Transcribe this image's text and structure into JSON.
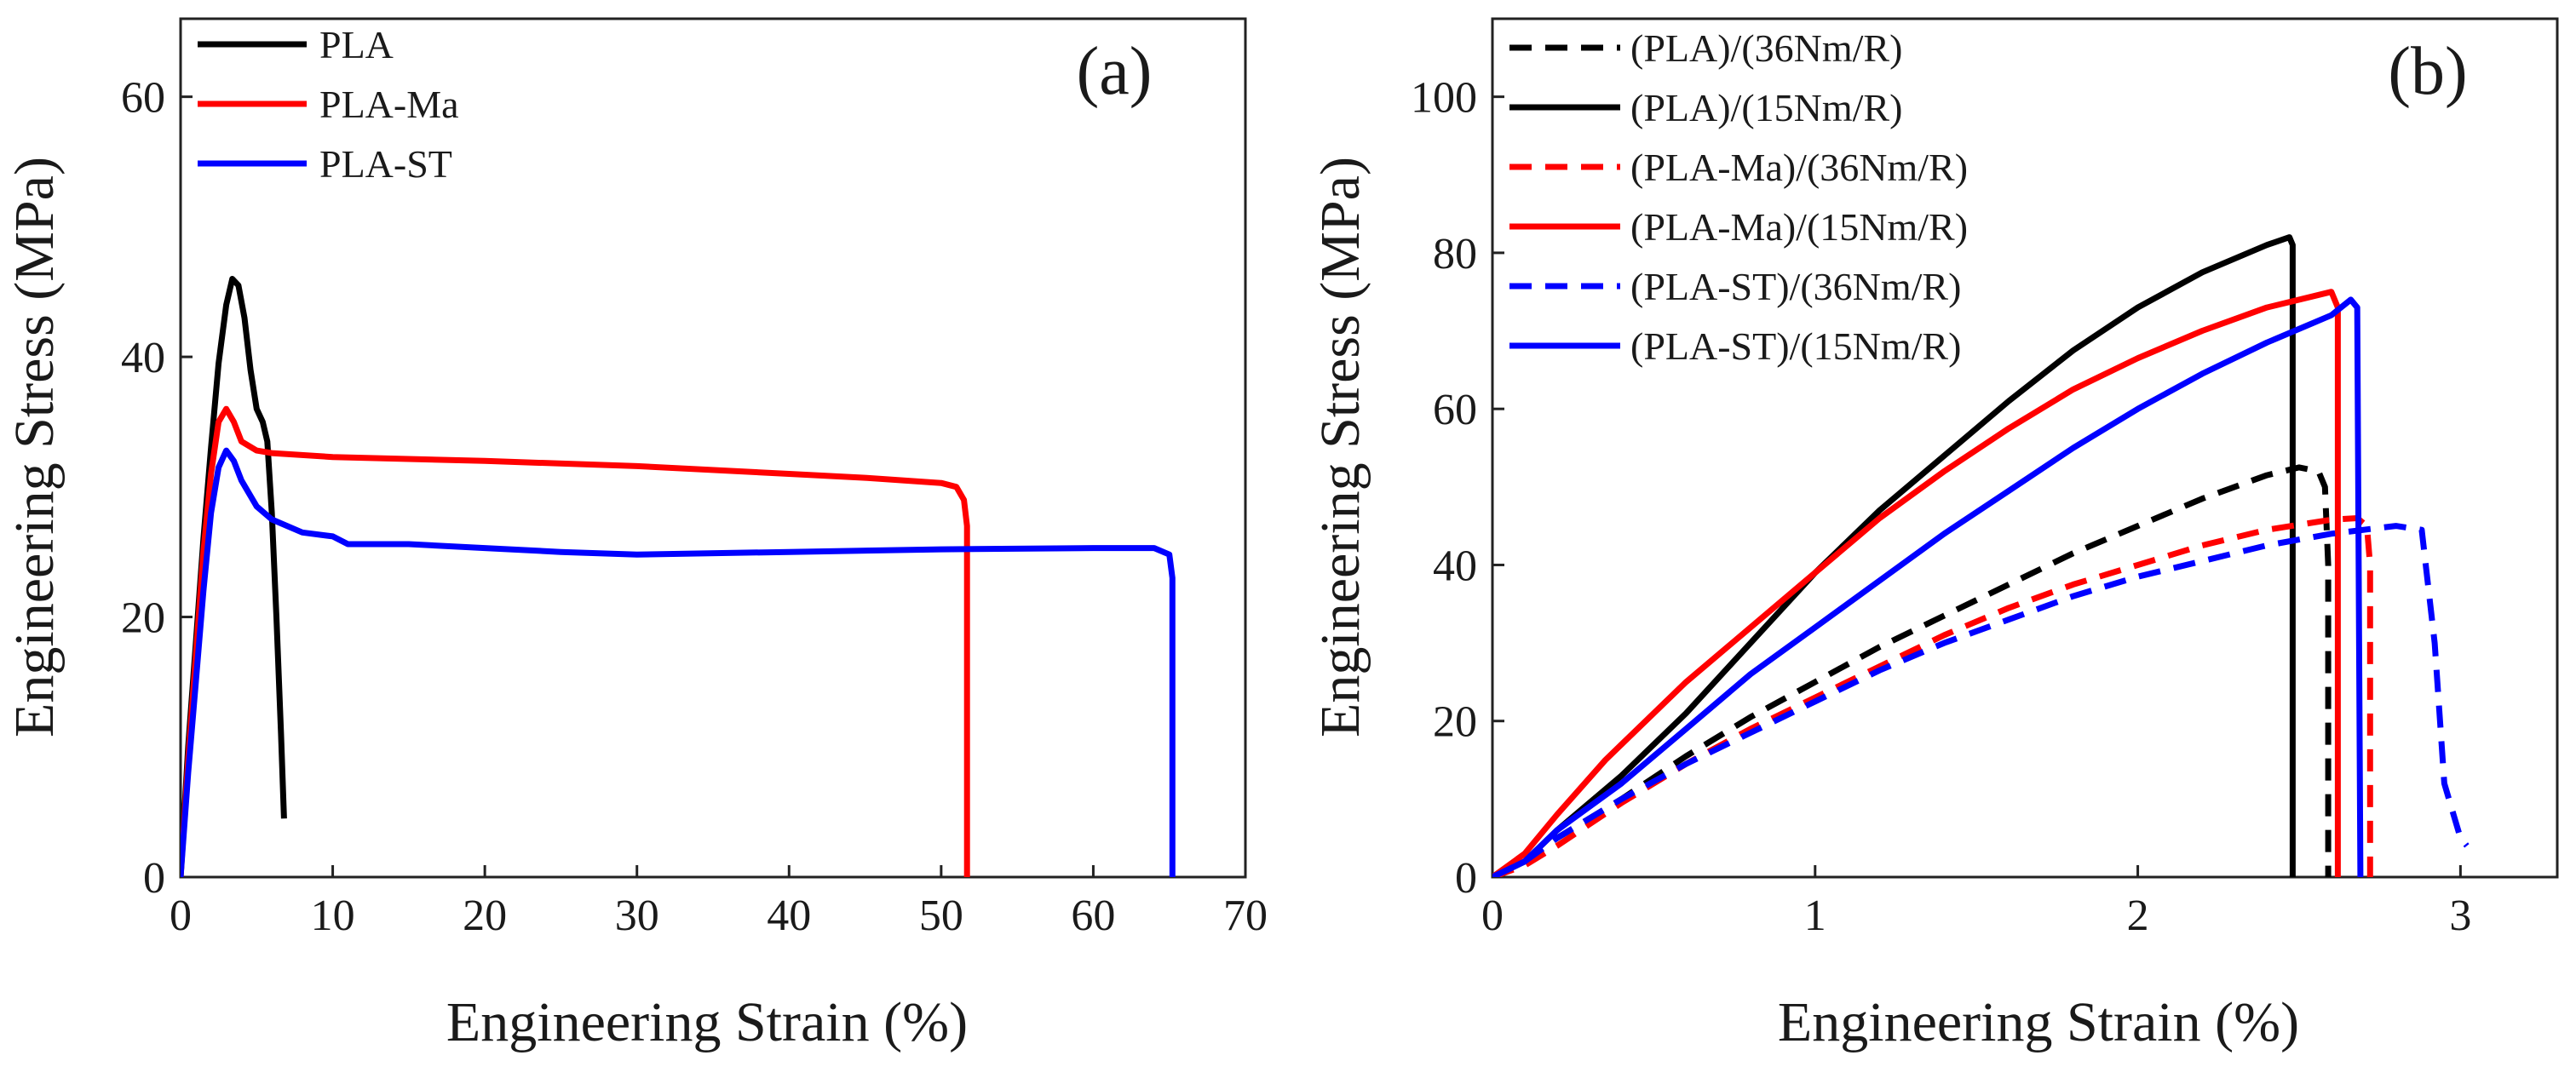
{
  "chart_data": [
    {
      "type": "line",
      "panel_label": "(a)",
      "title": "",
      "xlabel": "Engineering Strain (%)",
      "ylabel": "Engineering Stress (MPa)",
      "xlim": [
        0,
        70
      ],
      "ylim": [
        0,
        66
      ],
      "xticks": [
        0,
        10,
        20,
        30,
        40,
        50,
        60,
        70
      ],
      "yticks": [
        0,
        20,
        40,
        60
      ],
      "legend_position": "top-left",
      "grid": false,
      "series": [
        {
          "name": "PLA",
          "color": "#000000",
          "dash": "solid",
          "points": [
            [
              0,
              0
            ],
            [
              0.5,
              10
            ],
            [
              1,
              18
            ],
            [
              1.5,
              26
            ],
            [
              2,
              33
            ],
            [
              2.5,
              39.5
            ],
            [
              3,
              44
            ],
            [
              3.4,
              46
            ],
            [
              3.8,
              45.5
            ],
            [
              4.2,
              43
            ],
            [
              4.6,
              39
            ],
            [
              5,
              36
            ],
            [
              5.4,
              35
            ],
            [
              5.7,
              33.5
            ],
            [
              6,
              28
            ],
            [
              6.3,
              20
            ],
            [
              6.6,
              11
            ],
            [
              6.8,
              4.5
            ]
          ]
        },
        {
          "name": "PLA-Ma",
          "color": "#ff0000",
          "dash": "solid",
          "points": [
            [
              0,
              0
            ],
            [
              0.5,
              9
            ],
            [
              1,
              17
            ],
            [
              1.5,
              25
            ],
            [
              2,
              31
            ],
            [
              2.5,
              35
            ],
            [
              3,
              36
            ],
            [
              3.5,
              35
            ],
            [
              4,
              33.5
            ],
            [
              5,
              32.8
            ],
            [
              6,
              32.6
            ],
            [
              10,
              32.3
            ],
            [
              20,
              32
            ],
            [
              30,
              31.6
            ],
            [
              40,
              31
            ],
            [
              45,
              30.7
            ],
            [
              50,
              30.3
            ],
            [
              51,
              30
            ],
            [
              51.5,
              29
            ],
            [
              51.7,
              27
            ],
            [
              51.7,
              0
            ]
          ]
        },
        {
          "name": "PLA-ST",
          "color": "#0000ff",
          "dash": "solid",
          "points": [
            [
              0,
              0
            ],
            [
              0.5,
              8
            ],
            [
              1,
              15
            ],
            [
              1.5,
              22
            ],
            [
              2,
              28
            ],
            [
              2.5,
              31.5
            ],
            [
              3,
              32.8
            ],
            [
              3.5,
              32
            ],
            [
              4,
              30.5
            ],
            [
              5,
              28.5
            ],
            [
              6,
              27.5
            ],
            [
              8,
              26.5
            ],
            [
              10,
              26.2
            ],
            [
              11,
              25.6
            ],
            [
              15,
              25.6
            ],
            [
              20,
              25.3
            ],
            [
              25,
              25
            ],
            [
              30,
              24.8
            ],
            [
              40,
              25
            ],
            [
              50,
              25.2
            ],
            [
              60,
              25.3
            ],
            [
              64,
              25.3
            ],
            [
              65,
              24.8
            ],
            [
              65.2,
              23
            ],
            [
              65.2,
              0
            ]
          ]
        }
      ]
    },
    {
      "type": "line",
      "panel_label": "(b)",
      "title": "",
      "xlabel": "Engineering Strain (%)",
      "ylabel": "Engineering Stress (MPa)",
      "xlim": [
        0,
        3.3
      ],
      "ylim": [
        0,
        110
      ],
      "xticks": [
        0,
        1,
        2,
        3
      ],
      "yticks": [
        0,
        20,
        40,
        60,
        80,
        100
      ],
      "legend_position": "top-left",
      "grid": false,
      "series": [
        {
          "name": "(PLA)/(36Nm/R)",
          "color": "#000000",
          "dash": "dashed",
          "points": [
            [
              0,
              0
            ],
            [
              0.1,
              2
            ],
            [
              0.2,
              5
            ],
            [
              0.4,
              10
            ],
            [
              0.6,
              15.5
            ],
            [
              0.8,
              20.5
            ],
            [
              1,
              25
            ],
            [
              1.2,
              29.5
            ],
            [
              1.4,
              33.5
            ],
            [
              1.6,
              37.5
            ],
            [
              1.8,
              41.5
            ],
            [
              2,
              45
            ],
            [
              2.2,
              48.5
            ],
            [
              2.4,
              51.5
            ],
            [
              2.5,
              52.5
            ],
            [
              2.56,
              52
            ],
            [
              2.58,
              50
            ],
            [
              2.59,
              40
            ],
            [
              2.59,
              0
            ]
          ]
        },
        {
          "name": "(PLA)/(15Nm/R)",
          "color": "#000000",
          "dash": "solid",
          "points": [
            [
              0,
              0
            ],
            [
              0.1,
              2
            ],
            [
              0.2,
              6
            ],
            [
              0.4,
              13
            ],
            [
              0.6,
              21
            ],
            [
              0.8,
              30
            ],
            [
              1,
              39
            ],
            [
              1.2,
              47
            ],
            [
              1.4,
              54
            ],
            [
              1.6,
              61
            ],
            [
              1.8,
              67.5
            ],
            [
              2,
              73
            ],
            [
              2.2,
              77.5
            ],
            [
              2.4,
              81
            ],
            [
              2.47,
              82
            ],
            [
              2.48,
              81
            ],
            [
              2.48,
              0
            ]
          ]
        },
        {
          "name": "(PLA-Ma)/(36Nm/R)",
          "color": "#ff0000",
          "dash": "dashed",
          "points": [
            [
              0,
              0
            ],
            [
              0.1,
              1.5
            ],
            [
              0.2,
              4
            ],
            [
              0.4,
              9.5
            ],
            [
              0.6,
              14.5
            ],
            [
              0.8,
              19
            ],
            [
              1,
              23
            ],
            [
              1.2,
              27
            ],
            [
              1.4,
              31
            ],
            [
              1.6,
              34.5
            ],
            [
              1.8,
              37.5
            ],
            [
              2,
              40
            ],
            [
              2.2,
              42.5
            ],
            [
              2.4,
              44.5
            ],
            [
              2.6,
              45.8
            ],
            [
              2.68,
              46
            ],
            [
              2.71,
              45
            ],
            [
              2.72,
              40
            ],
            [
              2.72,
              0
            ]
          ]
        },
        {
          "name": "(PLA-Ma)/(15Nm/R)",
          "color": "#ff0000",
          "dash": "solid",
          "points": [
            [
              0,
              0
            ],
            [
              0.1,
              3
            ],
            [
              0.2,
              8
            ],
            [
              0.35,
              15
            ],
            [
              0.6,
              25
            ],
            [
              0.8,
              32
            ],
            [
              1,
              39
            ],
            [
              1.2,
              46
            ],
            [
              1.4,
              52
            ],
            [
              1.6,
              57.5
            ],
            [
              1.8,
              62.5
            ],
            [
              2,
              66.5
            ],
            [
              2.2,
              70
            ],
            [
              2.4,
              73
            ],
            [
              2.55,
              74.5
            ],
            [
              2.6,
              75
            ],
            [
              2.62,
              73
            ],
            [
              2.62,
              0
            ]
          ]
        },
        {
          "name": "(PLA-ST)/(36Nm/R)",
          "color": "#0000ff",
          "dash": "dashed",
          "points": [
            [
              0,
              0
            ],
            [
              0.1,
              2
            ],
            [
              0.2,
              5
            ],
            [
              0.4,
              10
            ],
            [
              0.6,
              14.5
            ],
            [
              0.8,
              18.5
            ],
            [
              1,
              22.5
            ],
            [
              1.2,
              26.5
            ],
            [
              1.4,
              30
            ],
            [
              1.6,
              33
            ],
            [
              1.8,
              36
            ],
            [
              2,
              38.5
            ],
            [
              2.2,
              40.5
            ],
            [
              2.4,
              42.5
            ],
            [
              2.6,
              44
            ],
            [
              2.8,
              45
            ],
            [
              2.88,
              44.5
            ],
            [
              2.92,
              30
            ],
            [
              2.95,
              12
            ],
            [
              3,
              5
            ],
            [
              3.02,
              4
            ]
          ]
        },
        {
          "name": "(PLA-ST)/(15Nm/R)",
          "color": "#0000ff",
          "dash": "solid",
          "points": [
            [
              0,
              0
            ],
            [
              0.1,
              2
            ],
            [
              0.2,
              6
            ],
            [
              0.4,
              12
            ],
            [
              0.6,
              19
            ],
            [
              0.8,
              26
            ],
            [
              1,
              32
            ],
            [
              1.2,
              38
            ],
            [
              1.4,
              44
            ],
            [
              1.6,
              49.5
            ],
            [
              1.8,
              55
            ],
            [
              2,
              60
            ],
            [
              2.2,
              64.5
            ],
            [
              2.4,
              68.5
            ],
            [
              2.6,
              72
            ],
            [
              2.66,
              74
            ],
            [
              2.68,
              73
            ],
            [
              2.69,
              0
            ]
          ]
        }
      ]
    }
  ]
}
